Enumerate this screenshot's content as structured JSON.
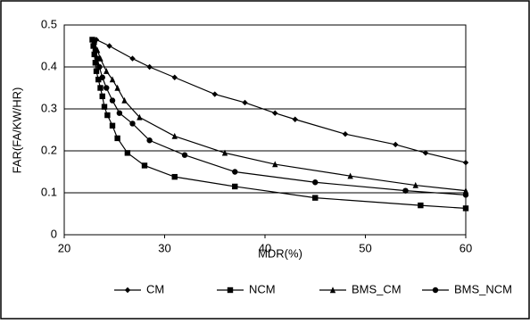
{
  "chart_data": {
    "type": "line",
    "x_label": "MDR(%)",
    "y_label": "FAR(FA/KW/HR)",
    "xlim": [
      20,
      60
    ],
    "xticks": [
      20,
      30,
      40,
      50,
      60
    ],
    "ylim": [
      0,
      0.5
    ],
    "yticks": [
      0,
      0.1,
      0.2,
      0.3,
      0.4,
      0.5
    ],
    "grid": "y",
    "legend": "bottom",
    "series": [
      {
        "name": "CM",
        "color": "#000000",
        "marker": "diamond",
        "x": [
          23.2,
          24.5,
          26.8,
          28.5,
          31,
          35,
          38,
          41,
          43,
          48,
          53,
          56,
          60
        ],
        "values": [
          0.465,
          0.45,
          0.42,
          0.4,
          0.375,
          0.335,
          0.315,
          0.29,
          0.275,
          0.24,
          0.215,
          0.195,
          0.172
        ]
      },
      {
        "name": "NCM",
        "color": "#000000",
        "marker": "square",
        "x": [
          22.8,
          22.9,
          23,
          23.1,
          23.2,
          23.4,
          23.6,
          23.8,
          24,
          24.3,
          24.8,
          25.3,
          26.3,
          28,
          31,
          37,
          45,
          55.5,
          60
        ],
        "values": [
          0.465,
          0.45,
          0.43,
          0.41,
          0.39,
          0.37,
          0.35,
          0.33,
          0.305,
          0.285,
          0.26,
          0.23,
          0.195,
          0.165,
          0.138,
          0.115,
          0.088,
          0.07,
          0.063
        ]
      },
      {
        "name": "BMS_CM",
        "color": "#000000",
        "marker": "triangle",
        "x": [
          23,
          23.3,
          23.6,
          24.2,
          24.8,
          25.3,
          26,
          27.5,
          31,
          36,
          41,
          48.5,
          55,
          60
        ],
        "values": [
          0.46,
          0.44,
          0.42,
          0.39,
          0.37,
          0.35,
          0.32,
          0.28,
          0.235,
          0.195,
          0.168,
          0.14,
          0.118,
          0.105
        ]
      },
      {
        "name": "BMS_NCM",
        "color": "#000000",
        "marker": "circle",
        "x": [
          23,
          23.1,
          23.3,
          23.5,
          23.8,
          24.2,
          24.8,
          25.5,
          26.8,
          28.5,
          32,
          37,
          45,
          54,
          60
        ],
        "values": [
          0.46,
          0.44,
          0.42,
          0.4,
          0.375,
          0.35,
          0.32,
          0.29,
          0.265,
          0.225,
          0.19,
          0.15,
          0.125,
          0.105,
          0.095
        ]
      }
    ]
  }
}
